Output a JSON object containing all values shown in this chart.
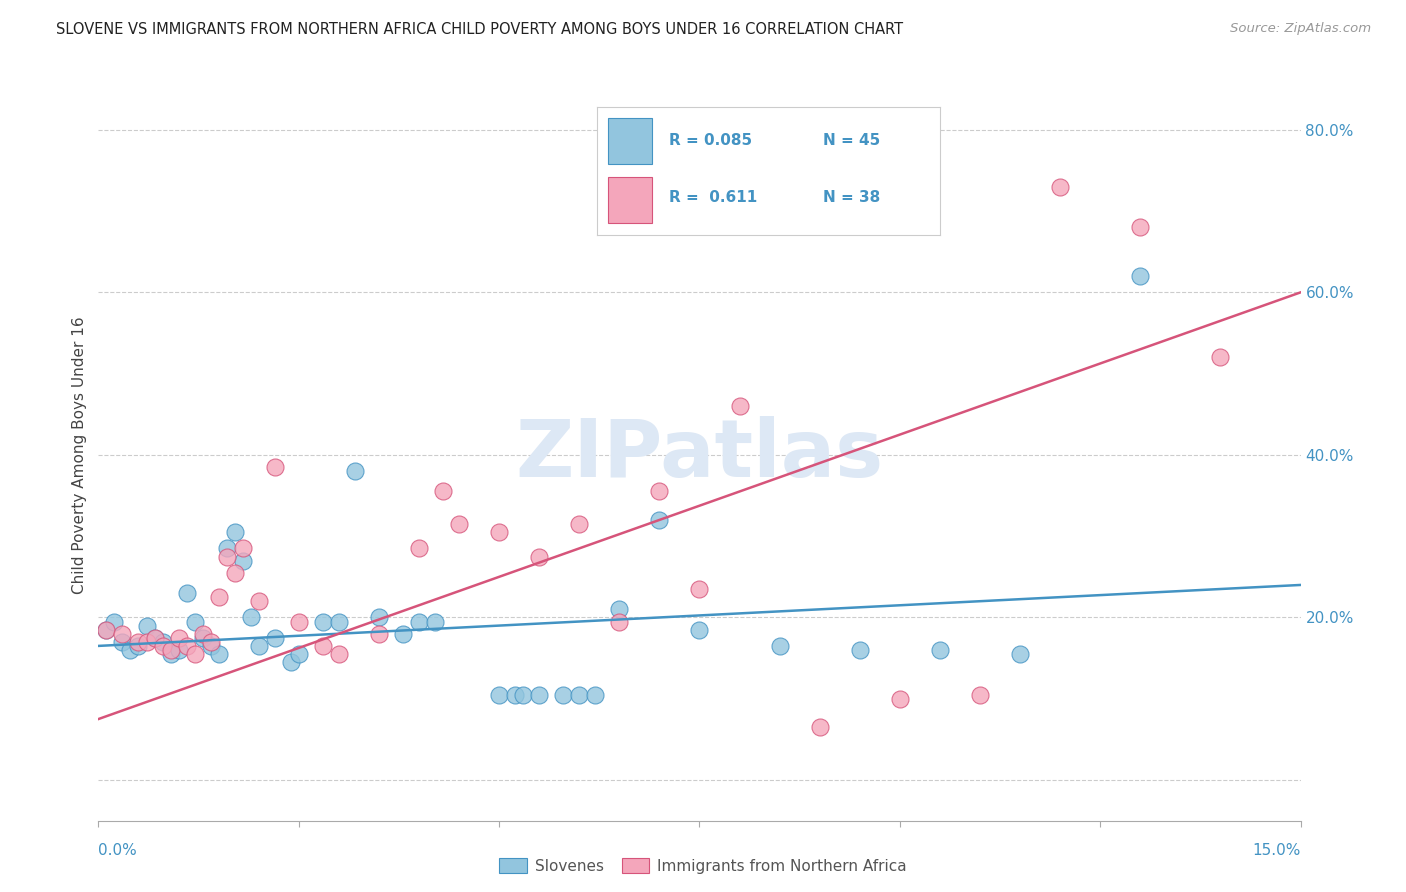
{
  "title": "SLOVENE VS IMMIGRANTS FROM NORTHERN AFRICA CHILD POVERTY AMONG BOYS UNDER 16 CORRELATION CHART",
  "source": "Source: ZipAtlas.com",
  "ylabel": "Child Poverty Among Boys Under 16",
  "xmin": 0.0,
  "xmax": 0.15,
  "ymin": -0.05,
  "ymax": 0.85,
  "yticks": [
    0.0,
    0.2,
    0.4,
    0.6,
    0.8
  ],
  "ytick_labels": [
    "",
    "20.0%",
    "40.0%",
    "60.0%",
    "80.0%"
  ],
  "watermark": "ZIPatlas",
  "blue_color": "#92c5de",
  "pink_color": "#f4a6bb",
  "blue_line_color": "#4393c3",
  "pink_line_color": "#d6547a",
  "slovenes_x": [
    0.001,
    0.002,
    0.003,
    0.004,
    0.005,
    0.006,
    0.007,
    0.008,
    0.009,
    0.01,
    0.011,
    0.012,
    0.013,
    0.014,
    0.015,
    0.016,
    0.017,
    0.018,
    0.019,
    0.02,
    0.022,
    0.024,
    0.025,
    0.028,
    0.03,
    0.032,
    0.035,
    0.038,
    0.04,
    0.042,
    0.05,
    0.052,
    0.053,
    0.055,
    0.058,
    0.06,
    0.062,
    0.065,
    0.07,
    0.075,
    0.085,
    0.095,
    0.105,
    0.115,
    0.13
  ],
  "slovenes_y": [
    0.185,
    0.195,
    0.17,
    0.16,
    0.165,
    0.19,
    0.175,
    0.17,
    0.155,
    0.16,
    0.23,
    0.195,
    0.175,
    0.165,
    0.155,
    0.285,
    0.305,
    0.27,
    0.2,
    0.165,
    0.175,
    0.145,
    0.155,
    0.195,
    0.195,
    0.38,
    0.2,
    0.18,
    0.195,
    0.195,
    0.105,
    0.105,
    0.105,
    0.105,
    0.105,
    0.105,
    0.105,
    0.21,
    0.32,
    0.185,
    0.165,
    0.16,
    0.16,
    0.155,
    0.62
  ],
  "immigrants_x": [
    0.001,
    0.003,
    0.005,
    0.006,
    0.007,
    0.008,
    0.009,
    0.01,
    0.011,
    0.012,
    0.013,
    0.014,
    0.015,
    0.016,
    0.017,
    0.018,
    0.02,
    0.022,
    0.025,
    0.028,
    0.03,
    0.035,
    0.04,
    0.043,
    0.045,
    0.05,
    0.055,
    0.06,
    0.065,
    0.07,
    0.075,
    0.08,
    0.09,
    0.1,
    0.11,
    0.12,
    0.13,
    0.14
  ],
  "immigrants_y": [
    0.185,
    0.18,
    0.17,
    0.17,
    0.175,
    0.165,
    0.16,
    0.175,
    0.165,
    0.155,
    0.18,
    0.17,
    0.225,
    0.275,
    0.255,
    0.285,
    0.22,
    0.385,
    0.195,
    0.165,
    0.155,
    0.18,
    0.285,
    0.355,
    0.315,
    0.305,
    0.275,
    0.315,
    0.195,
    0.355,
    0.235,
    0.46,
    0.065,
    0.1,
    0.105,
    0.73,
    0.68,
    0.52
  ],
  "blue_slope": 0.5,
  "blue_intercept": 0.165,
  "pink_slope": 3.5,
  "pink_intercept": 0.075
}
